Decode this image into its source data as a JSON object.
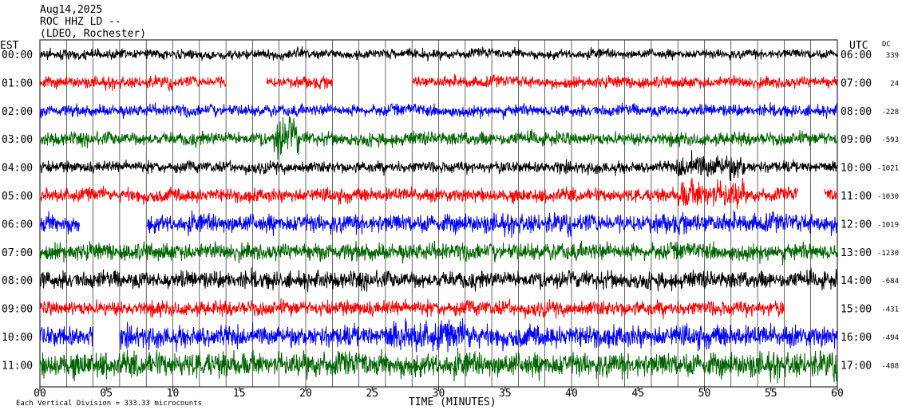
{
  "header": {
    "date": "Aug14,2025",
    "station": "ROC HHZ LD --",
    "network": "(LDEO, Rochester)"
  },
  "axes": {
    "left_zone": "EST",
    "right_zone": "UTC",
    "dc_header": "DC",
    "xlabel": "TIME (MINUTES)",
    "xticks": [
      "00",
      "05",
      "10",
      "15",
      "20",
      "25",
      "30",
      "35",
      "40",
      "45",
      "50",
      "55",
      "60"
    ],
    "scale_note": "Each Vertical Division = 333.33 microcounts"
  },
  "chart_data": {
    "type": "line",
    "title": "ROC HHZ LD --",
    "xlabel": "TIME (MINUTES)",
    "xlim": [
      0,
      60
    ],
    "x_ticks": [
      0,
      5,
      10,
      15,
      20,
      25,
      30,
      35,
      40,
      45,
      50,
      55,
      60
    ],
    "colors": [
      "#000000",
      "#ff0000",
      "#0000ff",
      "#006400"
    ],
    "rows": [
      {
        "est": "00:00",
        "utc": "06:00",
        "dc": "339",
        "color": "#000000",
        "gaps": []
      },
      {
        "est": "01:00",
        "utc": "07:00",
        "dc": "24",
        "color": "#ff0000",
        "gaps": [
          [
            14.0,
            17.0
          ],
          [
            22.0,
            28.0
          ]
        ]
      },
      {
        "est": "02:00",
        "utc": "08:00",
        "dc": "-228",
        "color": "#0000ff",
        "gaps": []
      },
      {
        "est": "03:00",
        "utc": "09:00",
        "dc": "-593",
        "color": "#006400",
        "gaps": []
      },
      {
        "est": "04:00",
        "utc": "10:00",
        "dc": "-1021",
        "color": "#000000",
        "gaps": []
      },
      {
        "est": "05:00",
        "utc": "11:00",
        "dc": "-1030",
        "color": "#ff0000",
        "gaps": [
          [
            57.0,
            59.0
          ]
        ]
      },
      {
        "est": "06:00",
        "utc": "12:00",
        "dc": "-1019",
        "color": "#0000ff",
        "gaps": [
          [
            3.0,
            8.0
          ]
        ]
      },
      {
        "est": "07:00",
        "utc": "13:00",
        "dc": "-1230",
        "color": "#006400",
        "gaps": []
      },
      {
        "est": "08:00",
        "utc": "14:00",
        "dc": "-684",
        "color": "#000000",
        "gaps": []
      },
      {
        "est": "09:00",
        "utc": "15:00",
        "dc": "-431",
        "color": "#ff0000",
        "gaps": [
          [
            56.0,
            60.0
          ]
        ]
      },
      {
        "est": "10:00",
        "utc": "16:00",
        "dc": "-494",
        "color": "#0000ff",
        "gaps": [
          [
            4.0,
            6.0
          ]
        ]
      },
      {
        "est": "11:00",
        "utc": "17:00",
        "dc": "-488",
        "color": "#006400",
        "gaps": []
      }
    ]
  }
}
